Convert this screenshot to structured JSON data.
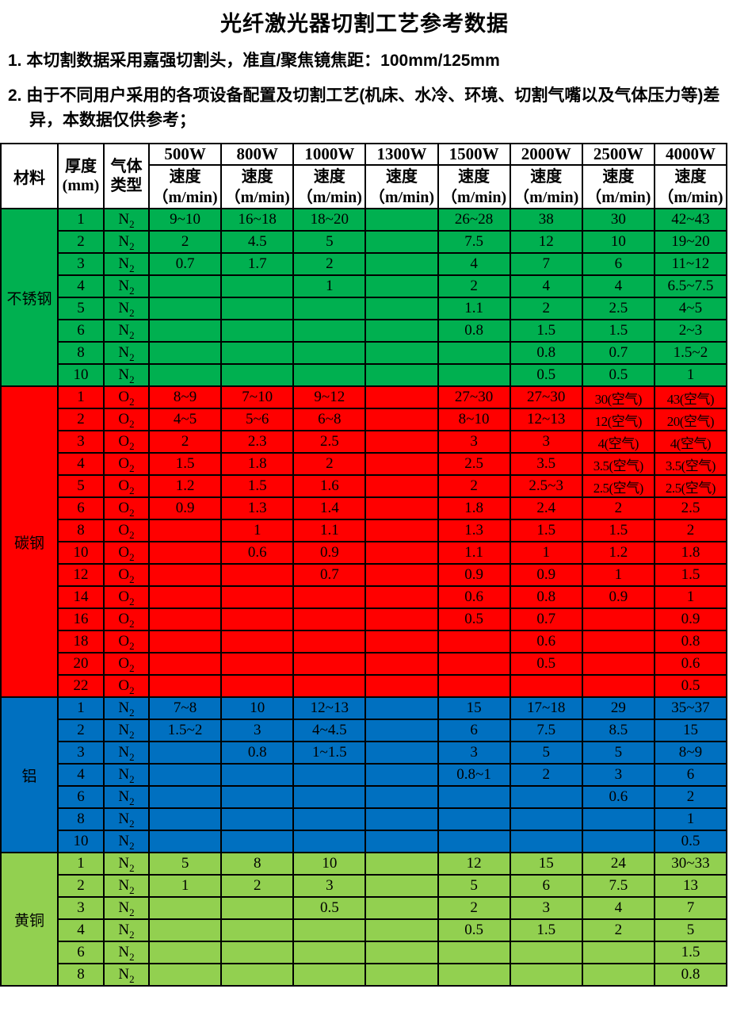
{
  "title": "光纤激光器切割工艺参考数据",
  "notes": [
    "1. 本切割数据采用嘉强切割头，准直/聚焦镜焦距：100mm/125mm",
    "2. 由于不同用户采用的各项设备配置及切割工艺(机床、水冷、环境、切割气嘴以及气体压力等)差异，本数据仅供参考；"
  ],
  "table": {
    "header": {
      "material": "材料",
      "thickness_line1": "厚度",
      "thickness_line2": "(mm)",
      "gas_line1": "气体",
      "gas_line2": "类型",
      "powers": [
        "500W",
        "800W",
        "1000W",
        "1300W",
        "1500W",
        "2000W",
        "2500W",
        "4000W"
      ],
      "speed_line1": "速度",
      "speed_line2": "（m/min)"
    },
    "sections": [
      {
        "material": "不锈钢",
        "color": "#00B050",
        "rows": [
          {
            "thickness": "1",
            "gas": "N2",
            "speeds": [
              "9~10",
              "16~18",
              "18~20",
              "",
              "26~28",
              "38",
              "30",
              "42~43"
            ]
          },
          {
            "thickness": "2",
            "gas": "N2",
            "speeds": [
              "2",
              "4.5",
              "5",
              "",
              "7.5",
              "12",
              "10",
              "19~20"
            ]
          },
          {
            "thickness": "3",
            "gas": "N2",
            "speeds": [
              "0.7",
              "1.7",
              "2",
              "",
              "4",
              "7",
              "6",
              "11~12"
            ]
          },
          {
            "thickness": "4",
            "gas": "N2",
            "speeds": [
              "",
              "",
              "1",
              "",
              "2",
              "4",
              "4",
              "6.5~7.5"
            ]
          },
          {
            "thickness": "5",
            "gas": "N2",
            "speeds": [
              "",
              "",
              "",
              "",
              "1.1",
              "2",
              "2.5",
              "4~5"
            ]
          },
          {
            "thickness": "6",
            "gas": "N2",
            "speeds": [
              "",
              "",
              "",
              "",
              "0.8",
              "1.5",
              "1.5",
              "2~3"
            ]
          },
          {
            "thickness": "8",
            "gas": "N2",
            "speeds": [
              "",
              "",
              "",
              "",
              "",
              "0.8",
              "0.7",
              "1.5~2"
            ]
          },
          {
            "thickness": "10",
            "gas": "N2",
            "speeds": [
              "",
              "",
              "",
              "",
              "",
              "0.5",
              "0.5",
              "1"
            ]
          }
        ]
      },
      {
        "material": "碳钢",
        "color": "#FF0000",
        "rows": [
          {
            "thickness": "1",
            "gas": "O2",
            "speeds": [
              "8~9",
              "7~10",
              "9~12",
              "",
              "27~30",
              "27~30",
              "30(空气)",
              "43(空气)"
            ]
          },
          {
            "thickness": "2",
            "gas": "O2",
            "speeds": [
              "4~5",
              "5~6",
              "6~8",
              "",
              "8~10",
              "12~13",
              "12(空气)",
              "20(空气)"
            ]
          },
          {
            "thickness": "3",
            "gas": "O2",
            "speeds": [
              "2",
              "2.3",
              "2.5",
              "",
              "3",
              "3",
              "4(空气)",
              "4(空气)"
            ]
          },
          {
            "thickness": "4",
            "gas": "O2",
            "speeds": [
              "1.5",
              "1.8",
              "2",
              "",
              "2.5",
              "3.5",
              "3.5(空气)",
              "3.5(空气)"
            ]
          },
          {
            "thickness": "5",
            "gas": "O2",
            "speeds": [
              "1.2",
              "1.5",
              "1.6",
              "",
              "2",
              "2.5~3",
              "2.5(空气)",
              "2.5(空气)"
            ]
          },
          {
            "thickness": "6",
            "gas": "O2",
            "speeds": [
              "0.9",
              "1.3",
              "1.4",
              "",
              "1.8",
              "2.4",
              "2",
              "2.5"
            ]
          },
          {
            "thickness": "8",
            "gas": "O2",
            "speeds": [
              "",
              "1",
              "1.1",
              "",
              "1.3",
              "1.5",
              "1.5",
              "2"
            ]
          },
          {
            "thickness": "10",
            "gas": "O2",
            "speeds": [
              "",
              "0.6",
              "0.9",
              "",
              "1.1",
              "1",
              "1.2",
              "1.8"
            ]
          },
          {
            "thickness": "12",
            "gas": "O2",
            "speeds": [
              "",
              "",
              "0.7",
              "",
              "0.9",
              "0.9",
              "1",
              "1.5"
            ]
          },
          {
            "thickness": "14",
            "gas": "O2",
            "speeds": [
              "",
              "",
              "",
              "",
              "0.6",
              "0.8",
              "0.9",
              "1"
            ]
          },
          {
            "thickness": "16",
            "gas": "O2",
            "speeds": [
              "",
              "",
              "",
              "",
              "0.5",
              "0.7",
              "",
              "0.9"
            ]
          },
          {
            "thickness": "18",
            "gas": "O2",
            "speeds": [
              "",
              "",
              "",
              "",
              "",
              "0.6",
              "",
              "0.8"
            ]
          },
          {
            "thickness": "20",
            "gas": "O2",
            "speeds": [
              "",
              "",
              "",
              "",
              "",
              "0.5",
              "",
              "0.6"
            ]
          },
          {
            "thickness": "22",
            "gas": "O2",
            "speeds": [
              "",
              "",
              "",
              "",
              "",
              "",
              "",
              "0.5"
            ]
          }
        ]
      },
      {
        "material": "铝",
        "color": "#0070C0",
        "rows": [
          {
            "thickness": "1",
            "gas": "N2",
            "speeds": [
              "7~8",
              "10",
              "12~13",
              "",
              "15",
              "17~18",
              "29",
              "35~37"
            ]
          },
          {
            "thickness": "2",
            "gas": "N2",
            "speeds": [
              "1.5~2",
              "3",
              "4~4.5",
              "",
              "6",
              "7.5",
              "8.5",
              "15"
            ]
          },
          {
            "thickness": "3",
            "gas": "N2",
            "speeds": [
              "",
              "0.8",
              "1~1.5",
              "",
              "3",
              "5",
              "5",
              "8~9"
            ]
          },
          {
            "thickness": "4",
            "gas": "N2",
            "speeds": [
              "",
              "",
              "",
              "",
              "0.8~1",
              "2",
              "3",
              "6"
            ]
          },
          {
            "thickness": "6",
            "gas": "N2",
            "speeds": [
              "",
              "",
              "",
              "",
              "",
              "",
              "0.6",
              "2"
            ]
          },
          {
            "thickness": "8",
            "gas": "N2",
            "speeds": [
              "",
              "",
              "",
              "",
              "",
              "",
              "",
              "1"
            ]
          },
          {
            "thickness": "10",
            "gas": "N2",
            "speeds": [
              "",
              "",
              "",
              "",
              "",
              "",
              "",
              "0.5"
            ]
          }
        ]
      },
      {
        "material": "黄铜",
        "color": "#92D050",
        "rows": [
          {
            "thickness": "1",
            "gas": "N2",
            "speeds": [
              "5",
              "8",
              "10",
              "",
              "12",
              "15",
              "24",
              "30~33"
            ]
          },
          {
            "thickness": "2",
            "gas": "N2",
            "speeds": [
              "1",
              "2",
              "3",
              "",
              "5",
              "6",
              "7.5",
              "13"
            ]
          },
          {
            "thickness": "3",
            "gas": "N2",
            "speeds": [
              "",
              "",
              "0.5",
              "",
              "2",
              "3",
              "4",
              "7"
            ]
          },
          {
            "thickness": "4",
            "gas": "N2",
            "speeds": [
              "",
              "",
              "",
              "",
              "0.5",
              "1.5",
              "2",
              "5"
            ]
          },
          {
            "thickness": "6",
            "gas": "N2",
            "speeds": [
              "",
              "",
              "",
              "",
              "",
              "",
              "",
              "1.5"
            ]
          },
          {
            "thickness": "8",
            "gas": "N2",
            "speeds": [
              "",
              "",
              "",
              "",
              "",
              "",
              "",
              "0.8"
            ]
          }
        ]
      }
    ]
  }
}
